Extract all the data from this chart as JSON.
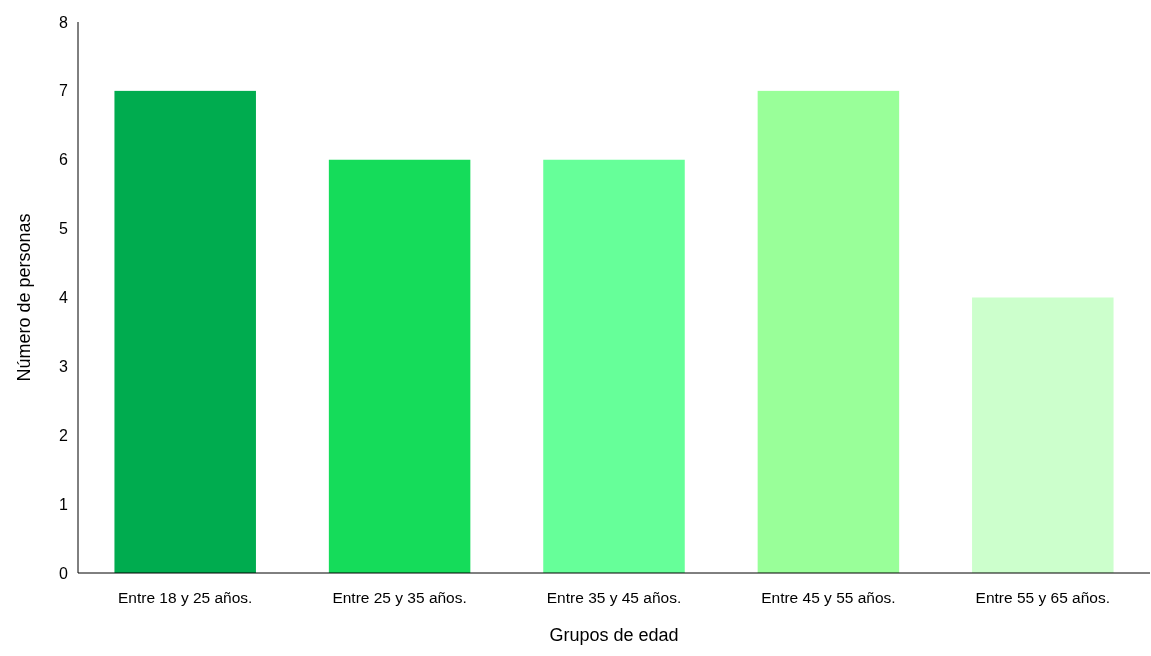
{
  "chart_data": {
    "type": "bar",
    "xlabel": "Grupos de edad",
    "ylabel": "Número de personas",
    "categories": [
      "Entre 18 y 25 años.",
      "Entre 25 y 35 años.",
      "Entre 35 y 45 años.",
      "Entre 45 y 55 años.",
      "Entre 55 y 65 años."
    ],
    "values": [
      7,
      6,
      6,
      7,
      4
    ],
    "colors": [
      "#00ac4f",
      "#15dc5a",
      "#66ff99",
      "#99ff99",
      "#ccffcc"
    ],
    "ylim": [
      0,
      8
    ],
    "yticks": [
      0,
      1,
      2,
      3,
      4,
      5,
      6,
      7,
      8
    ]
  }
}
